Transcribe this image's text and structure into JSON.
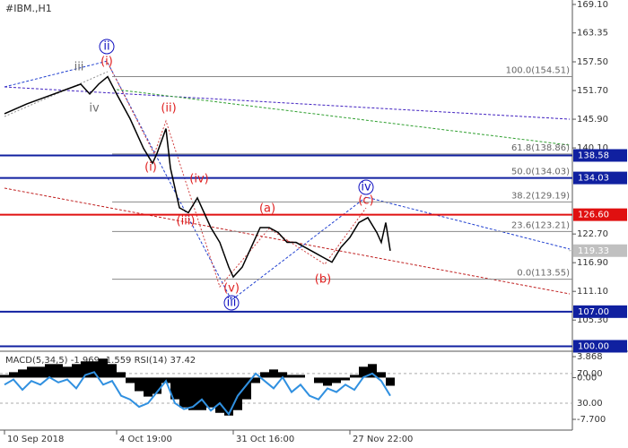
{
  "chart_data": [
    {
      "type": "line",
      "title": "#IBM.,H1",
      "x": [
        0,
        5,
        11,
        14,
        17,
        19,
        21,
        23,
        25,
        28,
        31,
        33,
        34,
        36,
        37,
        39,
        41,
        43,
        44,
        46,
        48,
        50,
        51,
        53,
        55,
        57,
        59,
        61,
        63,
        65,
        67,
        69,
        71,
        73,
        75,
        77,
        79,
        81,
        83,
        84,
        85,
        86
      ],
      "values": [
        147,
        149,
        151,
        152,
        153,
        151,
        153,
        154.5,
        151,
        146,
        140,
        137,
        139,
        144,
        136,
        128,
        127,
        130,
        128,
        124,
        121,
        116,
        114,
        116,
        120,
        124,
        124,
        123,
        121,
        121,
        120,
        119,
        118,
        117,
        120,
        122,
        125,
        126,
        123,
        121,
        125,
        119.3
      ],
      "color": "#000000",
      "xlim": [
        -1,
        126.6
      ],
      "xticks": [
        {
          "value": 0,
          "label": "10 Sep 2018"
        },
        {
          "value": 25,
          "label": "4 Oct 19:00"
        },
        {
          "value": 51,
          "label": "31 Oct 16:00"
        },
        {
          "value": 77,
          "label": "27 Nov 22:00"
        }
      ],
      "ylim": [
        99,
        170
      ],
      "yticks": [
        {
          "value": 169.1,
          "label": "169.10"
        },
        163.35,
        {
          "value": 157.5,
          "label": "157.50"
        },
        {
          "value": 151.7,
          "label": "151.70"
        },
        {
          "value": 145.9,
          "label": "145.90"
        },
        {
          "value": 140.1,
          "label": "140.10"
        },
        {
          "value": 122.7,
          "label": "122.70"
        },
        {
          "value": 116.9,
          "label": "116.90"
        },
        {
          "value": 111.1,
          "label": "111.10"
        },
        {
          "value": 105.3,
          "label": "105.30"
        }
      ],
      "levels": [
        {
          "value": 138.58,
          "label": "138.58",
          "color": "#1020a0"
        },
        {
          "value": 134.03,
          "label": "134.03",
          "color": "#1020a0"
        },
        {
          "value": 126.6,
          "label": "126.60",
          "color": "#e01010"
        },
        {
          "value": 119.33,
          "label": "119.33",
          "color": "#c0c0c0"
        },
        {
          "value": 107,
          "label": "107.00",
          "color": "#1020a0"
        },
        {
          "value": 100,
          "label": "100.00",
          "color": "#1020a0"
        }
      ],
      "fibonacci": [
        {
          "value": 154.51,
          "label": "100.0(154.51)"
        },
        {
          "value": 138.86,
          "label": "61.8(138.86)"
        },
        {
          "value": 134.03,
          "label": "50.0(134.03)"
        },
        {
          "value": 129.19,
          "label": "38.2(129.19)"
        },
        {
          "value": 123.21,
          "label": "23.6(123.21)"
        },
        {
          "value": 113.55,
          "label": "0.0(113.55)"
        }
      ],
      "annotations": [
        {
          "text": "ii",
          "color": "#1010c0",
          "circled": true
        },
        {
          "text": "iii",
          "color": "#707070",
          "circled": false
        },
        {
          "text": "(i)",
          "color": "#e02020",
          "circled": false
        },
        {
          "text": "iv",
          "color": "#707070",
          "circled": false
        },
        {
          "text": "(ii)",
          "color": "#e02020",
          "circled": false
        },
        {
          "text": "(i)",
          "color": "#e02020",
          "circled": false
        },
        {
          "text": "(iv)",
          "color": "#e02020",
          "circled": false
        },
        {
          "text": "(iii)",
          "color": "#e02020",
          "circled": false
        },
        {
          "text": "(v)",
          "color": "#e02020",
          "circled": false
        },
        {
          "text": "iii",
          "color": "#1010c0",
          "circled": true
        },
        {
          "text": "(a)",
          "color": "#e02020",
          "circled": false
        },
        {
          "text": "(b)",
          "color": "#e02020",
          "circled": false
        },
        {
          "text": "(c)",
          "color": "#e02020",
          "circled": false
        },
        {
          "text": "iv",
          "color": "#1010c0",
          "circled": true
        }
      ]
    },
    {
      "type": "indicator",
      "title": "MACD(5,34,5) -1.969 -1.559 RSI(14) 37.42",
      "x": [
        0,
        2,
        4,
        6,
        8,
        10,
        12,
        14,
        16,
        18,
        20,
        22,
        24,
        26,
        28,
        30,
        32,
        34,
        36,
        38,
        40,
        42,
        44,
        46,
        48,
        50,
        52,
        54,
        56,
        58,
        60,
        62,
        64,
        66,
        68,
        70,
        72,
        74,
        76,
        78,
        80,
        82,
        84,
        86
      ],
      "values": [
        0.5,
        1,
        1.5,
        2,
        2,
        2.5,
        2.5,
        2,
        2.5,
        3,
        3,
        3.5,
        2.5,
        1,
        -1,
        -2.5,
        -3.5,
        -3,
        -1,
        -4,
        -5.5,
        -6,
        -6,
        -5.5,
        -6.5,
        -7,
        -6,
        -4,
        -1,
        1,
        1.5,
        1,
        0.5,
        0.5,
        0,
        -1,
        -1.5,
        -1,
        -0.5,
        0.5,
        2,
        2.5,
        1,
        -1.5
      ],
      "color": "#000000",
      "series": [
        {
          "color": "#3090e0",
          "axis": "y2",
          "values": [
            55,
            62,
            48,
            60,
            55,
            65,
            58,
            62,
            50,
            68,
            72,
            55,
            60,
            40,
            35,
            25,
            30,
            45,
            60,
            30,
            22,
            25,
            35,
            20,
            30,
            15,
            40,
            55,
            70,
            60,
            50,
            65,
            45,
            55,
            40,
            35,
            50,
            45,
            55,
            48,
            65,
            70,
            60,
            40
          ]
        }
      ],
      "ylim": [
        -9.35,
        4.7
      ],
      "yticks": [
        3.868,
        {
          "value": 0,
          "label": "0.00"
        },
        {
          "value": -7.7,
          "label": "-7.700"
        }
      ],
      "y2lim": [
        -4,
        99
      ],
      "y2ticks": [
        {
          "value": 70,
          "label": "70.00"
        },
        {
          "value": 30,
          "label": "30.00"
        }
      ]
    }
  ]
}
